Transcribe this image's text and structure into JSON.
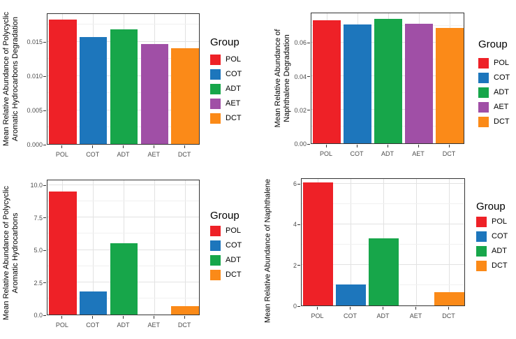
{
  "legend_title": "Group",
  "group_colors": {
    "POL": "#ee2127",
    "COT": "#1d76bc",
    "ADT": "#17a64a",
    "AET": "#a04fa6",
    "DCT": "#fb8a18"
  },
  "chart_data": [
    {
      "id": "pah-degradation",
      "type": "bar",
      "ylabel": "Mean Relative Abundance of Polycyclic\nAromatic Hydrocarbons Degradation",
      "xlabel": "",
      "categories": [
        "POL",
        "COT",
        "ADT",
        "AET",
        "DCT"
      ],
      "values": [
        0.0182,
        0.0156,
        0.0167,
        0.0146,
        0.014
      ],
      "ytick_values": [
        0,
        0.005,
        0.01,
        0.015
      ],
      "ytick_labels": [
        "0.000",
        "0.005",
        "0.010",
        "0.015"
      ],
      "ylim": [
        0,
        0.0192
      ],
      "grid": true,
      "legend_position": "right",
      "legend_entries": [
        "POL",
        "COT",
        "ADT",
        "AET",
        "DCT"
      ]
    },
    {
      "id": "naphthalene-degradation",
      "type": "bar",
      "ylabel": "Mean Relative Abundance of\nNaphthalene Degradation",
      "xlabel": "",
      "categories": [
        "POL",
        "COT",
        "ADT",
        "AET",
        "DCT"
      ],
      "values": [
        0.073,
        0.0705,
        0.074,
        0.071,
        0.0685
      ],
      "ytick_values": [
        0,
        0.02,
        0.04,
        0.06
      ],
      "ytick_labels": [
        "0.00",
        "0.02",
        "0.04",
        "0.06"
      ],
      "ylim": [
        0,
        0.078
      ],
      "grid": true,
      "legend_position": "right",
      "legend_entries": [
        "POL",
        "COT",
        "ADT",
        "AET",
        "DCT"
      ]
    },
    {
      "id": "pah-abundance",
      "type": "bar",
      "ylabel": "Mean Relative Abundance of Polycyclic\nAromatic Hydrocarbons",
      "xlabel": "",
      "categories": [
        "POL",
        "COT",
        "ADT",
        "AET",
        "DCT"
      ],
      "values": [
        9.5,
        1.76,
        5.5,
        0,
        0.63
      ],
      "ytick_values": [
        0,
        2.5,
        5.0,
        7.5,
        10.0
      ],
      "ytick_labels": [
        "0.0",
        "2.5",
        "5.0",
        "7.5",
        "10.0"
      ],
      "ylim": [
        0,
        10.45
      ],
      "grid": true,
      "legend_position": "right",
      "legend_entries": [
        "POL",
        "COT",
        "ADT",
        "DCT"
      ]
    },
    {
      "id": "naphthalene-abundance",
      "type": "bar",
      "ylabel": "Mean Relative Abundance of Naphthalene",
      "xlabel": "",
      "categories": [
        "POL",
        "COT",
        "ADT",
        "AET",
        "DCT"
      ],
      "values": [
        6.03,
        1.04,
        3.31,
        0,
        0.65
      ],
      "ytick_values": [
        0,
        2,
        4,
        6
      ],
      "ytick_labels": [
        "0",
        "2",
        "4",
        "6"
      ],
      "ylim": [
        0,
        6.28
      ],
      "grid": true,
      "legend_position": "right",
      "legend_entries": [
        "POL",
        "COT",
        "ADT",
        "DCT"
      ]
    }
  ]
}
